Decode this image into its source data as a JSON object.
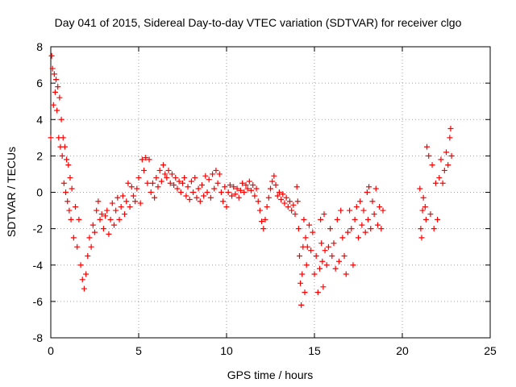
{
  "chart_data": {
    "type": "scatter",
    "title": "Day 041 of 2015, Sidereal Day-to-day VTEC variation (SDTVAR) for receiver clgo",
    "xlabel": "GPS time / hours",
    "ylabel": "SDTVAR / TECUs",
    "xlim": [
      0,
      25
    ],
    "ylim": [
      -8,
      8
    ],
    "xticks": [
      "0",
      "5",
      "10",
      "15",
      "20",
      "25"
    ],
    "yticks": [
      "-8",
      "-6",
      "-4",
      "-2",
      "0",
      "2",
      "4",
      "6",
      "8"
    ],
    "grid": true,
    "marker": "+",
    "series": [
      {
        "name": "SDTVAR",
        "color": "#ff0000",
        "points": [
          [
            0.0,
            3.0
          ],
          [
            0.05,
            7.5
          ],
          [
            0.1,
            6.8
          ],
          [
            0.15,
            4.8
          ],
          [
            0.2,
            6.5
          ],
          [
            0.25,
            5.5
          ],
          [
            0.3,
            6.2
          ],
          [
            0.35,
            4.5
          ],
          [
            0.4,
            5.8
          ],
          [
            0.45,
            3.0
          ],
          [
            0.5,
            5.2
          ],
          [
            0.55,
            2.5
          ],
          [
            0.6,
            4.0
          ],
          [
            0.65,
            2.0
          ],
          [
            0.7,
            3.0
          ],
          [
            0.75,
            0.5
          ],
          [
            0.8,
            2.5
          ],
          [
            0.85,
            0.0
          ],
          [
            0.9,
            1.8
          ],
          [
            0.95,
            -0.5
          ],
          [
            1.0,
            1.5
          ],
          [
            1.05,
            -1.0
          ],
          [
            1.1,
            0.8
          ],
          [
            1.15,
            -1.5
          ],
          [
            1.2,
            0.2
          ],
          [
            1.3,
            -2.5
          ],
          [
            1.4,
            -0.8
          ],
          [
            1.5,
            -3.0
          ],
          [
            1.6,
            -1.5
          ],
          [
            1.7,
            -4.0
          ],
          [
            1.8,
            -4.8
          ],
          [
            1.9,
            -5.3
          ],
          [
            2.0,
            -4.5
          ],
          [
            2.1,
            -3.5
          ],
          [
            2.2,
            -2.5
          ],
          [
            2.3,
            -3.0
          ],
          [
            2.4,
            -1.8
          ],
          [
            2.5,
            -2.2
          ],
          [
            2.6,
            -1.0
          ],
          [
            2.7,
            -0.5
          ],
          [
            2.8,
            -1.5
          ],
          [
            2.9,
            -1.2
          ],
          [
            3.0,
            -2.0
          ],
          [
            3.1,
            -1.3
          ],
          [
            3.2,
            -1.0
          ],
          [
            3.3,
            -2.3
          ],
          [
            3.4,
            -1.5
          ],
          [
            3.5,
            -0.6
          ],
          [
            3.6,
            -1.8
          ],
          [
            3.7,
            -1.0
          ],
          [
            3.8,
            -0.3
          ],
          [
            3.9,
            -1.5
          ],
          [
            4.0,
            -0.8
          ],
          [
            4.1,
            -0.2
          ],
          [
            4.2,
            -1.2
          ],
          [
            4.3,
            -0.5
          ],
          [
            4.4,
            0.5
          ],
          [
            4.5,
            -0.8
          ],
          [
            4.6,
            0.3
          ],
          [
            4.7,
            -0.2
          ],
          [
            4.8,
            -0.5
          ],
          [
            4.9,
            0.2
          ],
          [
            5.0,
            0.8
          ],
          [
            5.1,
            -0.6
          ],
          [
            5.2,
            1.8
          ],
          [
            5.3,
            1.2
          ],
          [
            5.4,
            1.9
          ],
          [
            5.5,
            0.5
          ],
          [
            5.6,
            1.8
          ],
          [
            5.7,
            0.0
          ],
          [
            5.8,
            0.5
          ],
          [
            5.9,
            -0.3
          ],
          [
            6.0,
            0.8
          ],
          [
            6.1,
            0.3
          ],
          [
            6.2,
            1.2
          ],
          [
            6.3,
            0.6
          ],
          [
            6.4,
            1.5
          ],
          [
            6.5,
            1.0
          ],
          [
            6.6,
            0.8
          ],
          [
            6.7,
            1.2
          ],
          [
            6.8,
            0.5
          ],
          [
            6.9,
            1.0
          ],
          [
            7.0,
            0.4
          ],
          [
            7.1,
            0.8
          ],
          [
            7.2,
            0.2
          ],
          [
            7.3,
            0.6
          ],
          [
            7.4,
            0.0
          ],
          [
            7.5,
            0.5
          ],
          [
            7.6,
            0.8
          ],
          [
            7.7,
            -0.2
          ],
          [
            7.8,
            0.3
          ],
          [
            7.9,
            -0.4
          ],
          [
            8.0,
            0.6
          ],
          [
            8.1,
            0.0
          ],
          [
            8.2,
            0.8
          ],
          [
            8.3,
            -0.3
          ],
          [
            8.4,
            0.2
          ],
          [
            8.5,
            -0.5
          ],
          [
            8.6,
            0.4
          ],
          [
            8.7,
            -0.2
          ],
          [
            8.8,
            0.9
          ],
          [
            8.9,
            0.0
          ],
          [
            9.0,
            0.7
          ],
          [
            9.1,
            -0.3
          ],
          [
            9.2,
            1.0
          ],
          [
            9.3,
            0.2
          ],
          [
            9.4,
            1.2
          ],
          [
            9.5,
            0.5
          ],
          [
            9.6,
            1.0
          ],
          [
            9.7,
            0.0
          ],
          [
            9.8,
            -0.5
          ],
          [
            9.9,
            0.3
          ],
          [
            10.0,
            -0.8
          ],
          [
            10.1,
            0.0
          ],
          [
            10.2,
            0.4
          ],
          [
            10.3,
            -0.2
          ],
          [
            10.4,
            0.3
          ],
          [
            10.5,
            -0.1
          ],
          [
            10.6,
            0.2
          ],
          [
            10.7,
            -0.3
          ],
          [
            10.8,
            0.1
          ],
          [
            10.9,
            0.5
          ],
          [
            11.0,
            0.0
          ],
          [
            11.1,
            0.4
          ],
          [
            11.2,
            0.2
          ],
          [
            11.3,
            0.6
          ],
          [
            11.4,
            0.1
          ],
          [
            11.5,
            0.4
          ],
          [
            11.6,
            -0.2
          ],
          [
            11.7,
            0.2
          ],
          [
            11.8,
            -0.5
          ],
          [
            11.9,
            -1.0
          ],
          [
            12.0,
            -1.6
          ],
          [
            12.1,
            -2.0
          ],
          [
            12.2,
            -1.5
          ],
          [
            12.3,
            -0.8
          ],
          [
            12.4,
            -0.3
          ],
          [
            12.5,
            0.2
          ],
          [
            12.6,
            0.6
          ],
          [
            12.7,
            0.9
          ],
          [
            12.8,
            0.4
          ],
          [
            12.9,
            -0.2
          ],
          [
            13.0,
            0.0
          ],
          [
            13.1,
            -0.4
          ],
          [
            13.2,
            -0.1
          ],
          [
            13.3,
            -0.6
          ],
          [
            13.4,
            -0.3
          ],
          [
            13.5,
            -0.8
          ],
          [
            13.6,
            -0.5
          ],
          [
            13.7,
            -1.0
          ],
          [
            13.8,
            -0.7
          ],
          [
            13.9,
            -1.2
          ],
          [
            14.0,
            0.3
          ],
          [
            14.05,
            -0.5
          ],
          [
            14.1,
            -2.0
          ],
          [
            14.15,
            -3.5
          ],
          [
            14.2,
            -5.0
          ],
          [
            14.25,
            -6.2
          ],
          [
            14.3,
            -4.5
          ],
          [
            14.35,
            -3.0
          ],
          [
            14.4,
            -1.5
          ],
          [
            14.45,
            -5.5
          ],
          [
            14.5,
            -2.5
          ],
          [
            14.55,
            -4.0
          ],
          [
            14.6,
            -3.0
          ],
          [
            14.7,
            -1.8
          ],
          [
            14.8,
            -3.2
          ],
          [
            14.9,
            -2.2
          ],
          [
            15.0,
            -4.5
          ],
          [
            15.1,
            -3.5
          ],
          [
            15.2,
            -5.5
          ],
          [
            15.3,
            -4.2
          ],
          [
            15.35,
            -1.5
          ],
          [
            15.4,
            -2.8
          ],
          [
            15.45,
            -3.8
          ],
          [
            15.5,
            -5.2
          ],
          [
            15.55,
            -1.2
          ],
          [
            15.6,
            -3.2
          ],
          [
            15.7,
            -4.0
          ],
          [
            15.8,
            -3.0
          ],
          [
            15.9,
            -2.0
          ],
          [
            16.0,
            -3.5
          ],
          [
            16.1,
            -2.8
          ],
          [
            16.2,
            -4.2
          ],
          [
            16.3,
            -1.5
          ],
          [
            16.4,
            -3.8
          ],
          [
            16.5,
            -1.0
          ],
          [
            16.6,
            -2.5
          ],
          [
            16.7,
            -3.5
          ],
          [
            16.8,
            -4.5
          ],
          [
            16.9,
            -2.2
          ],
          [
            17.0,
            -1.0
          ],
          [
            17.1,
            -2.0
          ],
          [
            17.2,
            -4.0
          ],
          [
            17.3,
            -1.5
          ],
          [
            17.4,
            -0.8
          ],
          [
            17.5,
            -2.5
          ],
          [
            17.6,
            -0.5
          ],
          [
            17.7,
            -1.8
          ],
          [
            17.8,
            -1.0
          ],
          [
            17.9,
            -2.2
          ],
          [
            18.0,
            0.0
          ],
          [
            18.05,
            -1.5
          ],
          [
            18.1,
            0.3
          ],
          [
            18.2,
            -2.0
          ],
          [
            18.3,
            -0.5
          ],
          [
            18.4,
            -1.2
          ],
          [
            18.5,
            0.2
          ],
          [
            18.6,
            -1.8
          ],
          [
            18.7,
            -0.8
          ],
          [
            18.8,
            -2.0
          ],
          [
            18.9,
            -1.0
          ],
          [
            21.0,
            0.2
          ],
          [
            21.05,
            -2.0
          ],
          [
            21.1,
            -2.5
          ],
          [
            21.15,
            -1.0
          ],
          [
            21.2,
            -0.3
          ],
          [
            21.3,
            -0.8
          ],
          [
            21.35,
            -1.5
          ],
          [
            21.4,
            2.5
          ],
          [
            21.5,
            2.0
          ],
          [
            21.6,
            -1.2
          ],
          [
            21.7,
            1.5
          ],
          [
            21.8,
            -2.0
          ],
          [
            21.9,
            0.5
          ],
          [
            22.0,
            -1.5
          ],
          [
            22.1,
            0.8
          ],
          [
            22.2,
            1.8
          ],
          [
            22.3,
            0.5
          ],
          [
            22.4,
            1.2
          ],
          [
            22.5,
            2.2
          ],
          [
            22.6,
            1.5
          ],
          [
            22.7,
            3.0
          ],
          [
            22.75,
            3.5
          ],
          [
            22.8,
            2.0
          ]
        ]
      }
    ]
  }
}
